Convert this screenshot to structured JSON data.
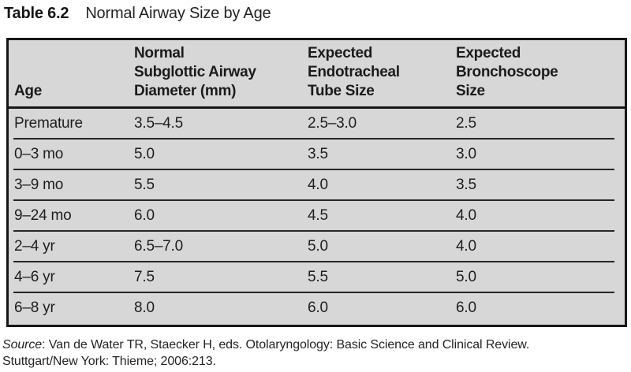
{
  "title": {
    "label": "Table 6.2",
    "caption": "Normal Airway Size by Age"
  },
  "table": {
    "columns": [
      "Age",
      "Normal\nSubglottic Airway\nDiameter (mm)",
      "Expected\nEndotracheal\nTube Size",
      "Expected\nBronchoscope\nSize"
    ],
    "rows": [
      {
        "cells": [
          "Premature",
          "3.5–4.5",
          "2.5–3.0",
          "2.5"
        ]
      },
      {
        "cells": [
          "0–3 mo",
          "5.0",
          "3.5",
          "3.0"
        ]
      },
      {
        "cells": [
          "3–9 mo",
          "5.5",
          "4.0",
          "3.5"
        ]
      },
      {
        "cells": [
          "9–24 mo",
          "6.0",
          "4.5",
          "4.0"
        ]
      },
      {
        "cells": [
          "2–4 yr",
          "6.5–7.0",
          "5.0",
          "4.0"
        ]
      },
      {
        "cells": [
          "4–6 yr",
          "7.5",
          "5.5",
          "5.0"
        ]
      },
      {
        "cells": [
          "6–8 yr",
          "8.0",
          "6.0",
          "6.0"
        ]
      }
    ]
  },
  "footer": {
    "source_label": "Source",
    "source_text": ": Van de Water TR, Staecker H, eds. Otolaryngology: Basic Science and Clinical Review.",
    "line2": "Stuttgart/New York: Thieme; 2006:213."
  },
  "colors": {
    "table_background": "#d7d7d7",
    "border": "#161616",
    "text": "#1f1f1f",
    "page_background": "#ffffff"
  }
}
